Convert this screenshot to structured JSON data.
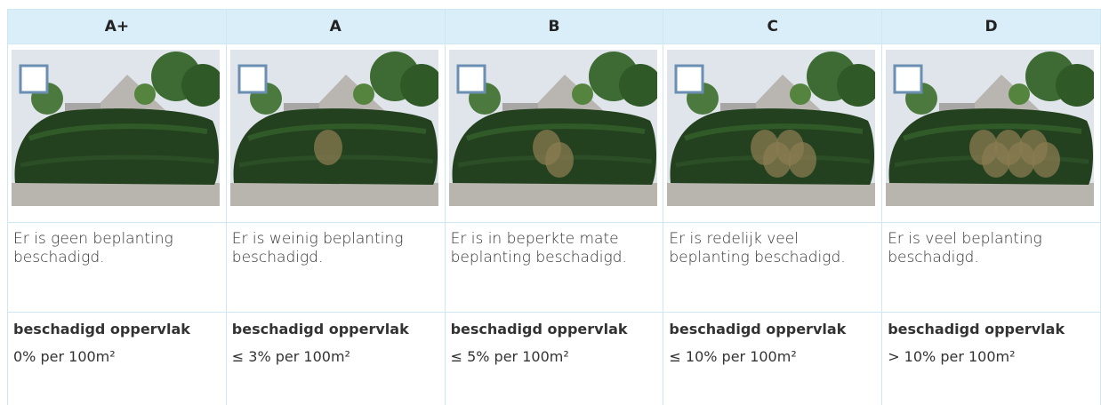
{
  "table": {
    "headers": [
      "A+",
      "A",
      "B",
      "C",
      "D"
    ],
    "descriptions": [
      "Er is geen beplanting beschadigd.",
      "Er is weinig beplanting beschadigd.",
      "Er is in beperkte mate beplanting beschadigd.",
      "Er is redelijk veel beplanting beschadigd.",
      "Er is veel beplanting beschadigd."
    ],
    "measure_labels": [
      "beschadigd oppervlak",
      "beschadigd oppervlak",
      "beschadigd oppervlak",
      "beschadigd oppervlak",
      "beschadigd oppervlak"
    ],
    "measures": [
      "0% per 100m²",
      "≤ 3% per 100m²",
      "≤ 5% per 100m²",
      "≤ 10% per 100m²",
      "> 10% per 100m²"
    ]
  }
}
